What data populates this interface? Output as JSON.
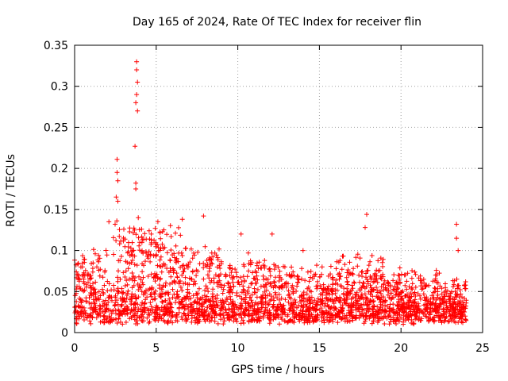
{
  "chart_data": {
    "type": "scatter",
    "title": "Day 165 of 2024, Rate Of TEC Index for receiver flin",
    "xlabel": "GPS time / hours",
    "ylabel": "ROTI / TECUs",
    "xlim": [
      0,
      25
    ],
    "ylim": [
      0,
      0.35
    ],
    "xticks": [
      0,
      5,
      10,
      15,
      20,
      25
    ],
    "yticks": [
      0,
      0.05,
      0.1,
      0.15,
      0.2,
      0.25,
      0.3,
      0.35
    ],
    "xtick_labels": [
      "0",
      "5",
      "10",
      "15",
      "20",
      "25"
    ],
    "ytick_labels": [
      "0",
      "0.05",
      "0.1",
      "0.15",
      "0.2",
      "0.25",
      "0.3",
      "0.35"
    ],
    "grid": true,
    "marker": "+",
    "color": "#ff0000",
    "data_span_hours": [
      0,
      24
    ],
    "baseline_band": [
      0.01,
      0.03
    ],
    "notable_points": [
      {
        "x": 3.8,
        "y": 0.33
      },
      {
        "x": 3.8,
        "y": 0.32
      },
      {
        "x": 3.85,
        "y": 0.305
      },
      {
        "x": 3.8,
        "y": 0.29
      },
      {
        "x": 3.75,
        "y": 0.28
      },
      {
        "x": 3.85,
        "y": 0.27
      },
      {
        "x": 3.7,
        "y": 0.227
      },
      {
        "x": 2.6,
        "y": 0.211
      },
      {
        "x": 2.6,
        "y": 0.195
      },
      {
        "x": 2.65,
        "y": 0.185
      },
      {
        "x": 2.55,
        "y": 0.165
      },
      {
        "x": 2.65,
        "y": 0.16
      },
      {
        "x": 3.75,
        "y": 0.182
      },
      {
        "x": 3.75,
        "y": 0.175
      },
      {
        "x": 2.1,
        "y": 0.135
      },
      {
        "x": 3.9,
        "y": 0.14
      },
      {
        "x": 4.7,
        "y": 0.12
      },
      {
        "x": 5.1,
        "y": 0.135
      },
      {
        "x": 6.6,
        "y": 0.138
      },
      {
        "x": 7.9,
        "y": 0.142
      },
      {
        "x": 10.2,
        "y": 0.12
      },
      {
        "x": 12.1,
        "y": 0.12
      },
      {
        "x": 14.0,
        "y": 0.1
      },
      {
        "x": 17.9,
        "y": 0.144
      },
      {
        "x": 17.8,
        "y": 0.128
      },
      {
        "x": 23.4,
        "y": 0.132
      },
      {
        "x": 23.4,
        "y": 0.115
      },
      {
        "x": 23.5,
        "y": 0.1
      },
      {
        "x": 23.5,
        "y": 0.057
      },
      {
        "x": 23.9,
        "y": 0.058
      }
    ]
  }
}
